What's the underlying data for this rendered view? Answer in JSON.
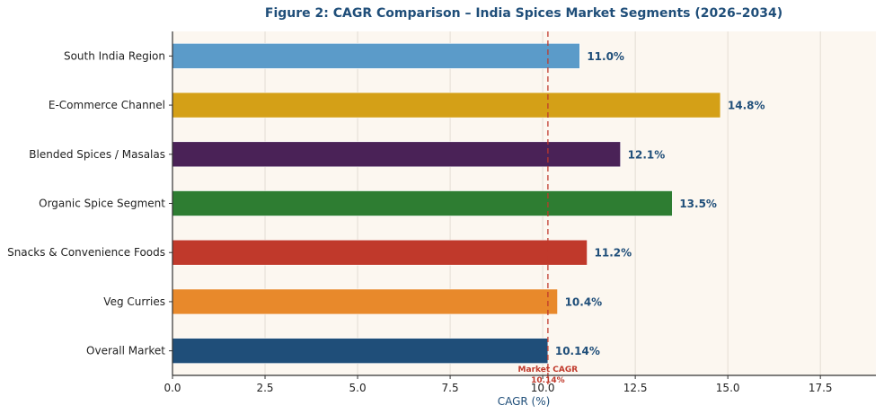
{
  "chart_data": {
    "type": "bar",
    "orientation": "horizontal",
    "title": "Figure 2: CAGR Comparison – India Spices Market Segments (2026–2034)",
    "xlabel": "CAGR (%)",
    "ylabel": "",
    "xlim": [
      0,
      19
    ],
    "xticks": [
      0.0,
      2.5,
      5.0,
      7.5,
      10.0,
      12.5,
      15.0,
      17.5
    ],
    "xtick_labels": [
      "0.0",
      "2.5",
      "5.0",
      "7.5",
      "10.0",
      "12.5",
      "15.0",
      "17.5"
    ],
    "grid": "vertical",
    "categories": [
      "South India Region",
      "E-Commerce Channel",
      "Blended Spices / Masalas",
      "Organic Spice Segment",
      "Snacks & Convenience Foods",
      "Veg Curries",
      "Overall Market"
    ],
    "values": [
      11.0,
      14.8,
      12.1,
      13.5,
      11.2,
      10.4,
      10.14
    ],
    "data_labels": [
      "11.0%",
      "14.8%",
      "12.1%",
      "13.5%",
      "11.2%",
      "10.4%",
      "10.14%"
    ],
    "colors": [
      "#5b9bc9",
      "#d4a017",
      "#4a2257",
      "#2e7d32",
      "#c0392b",
      "#e8892b",
      "#1f4e79"
    ],
    "reference_line": {
      "value": 10.14,
      "style": "dashed",
      "color": "#c0392b",
      "label_line1": "Market CAGR",
      "label_line2": "10.14%"
    },
    "background": "#fcf7f0"
  }
}
